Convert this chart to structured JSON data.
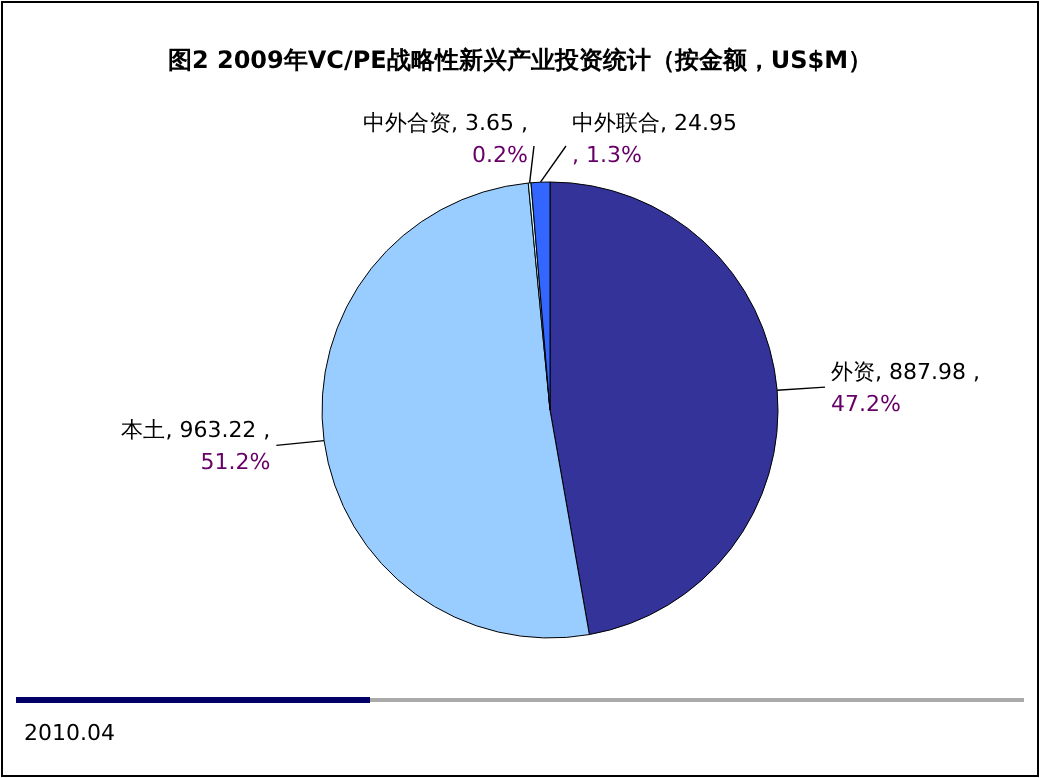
{
  "chart_data": {
    "type": "pie",
    "title": "图2  2009年VC/PE战略性新兴产业投资统计（按金额，US$M）",
    "categories": [
      "外资",
      "本土",
      "中外合资",
      "中外联合"
    ],
    "values": [
      887.98,
      963.22,
      3.65,
      24.95
    ],
    "colors": [
      "#333399",
      "#99ccff",
      "#ccffff",
      "#3366ff"
    ],
    "value_labels": [
      ", 887.98 ,\n47.2%",
      ", 963.22 ,\n51.2%",
      ", 3.65 ,\n0.2%",
      ", 24.95\n, 1.3%"
    ],
    "annotations": [
      "2010.04"
    ]
  }
}
